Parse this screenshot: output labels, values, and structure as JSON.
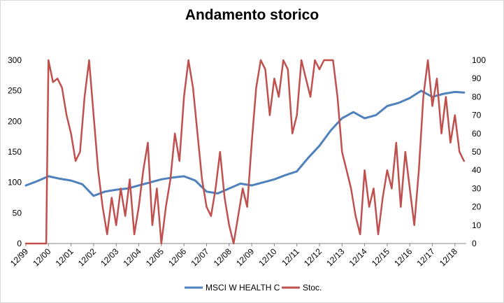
{
  "chart_data": {
    "type": "line",
    "title": "Andamento storico",
    "x_categories": [
      "12/99",
      "12/00",
      "12/01",
      "12/02",
      "12/03",
      "12/04",
      "12/05",
      "12/06",
      "12/07",
      "12/08",
      "12/09",
      "12/10",
      "12/11",
      "12/12",
      "12/13",
      "12/14",
      "12/15",
      "12/16",
      "12/17",
      "12/18"
    ],
    "y_left": {
      "ylim": [
        0,
        300
      ],
      "ticks": [
        0,
        50,
        100,
        150,
        200,
        250,
        300
      ]
    },
    "y_right": {
      "ylim": [
        0,
        100
      ],
      "ticks": [
        0,
        10,
        20,
        30,
        40,
        50,
        60,
        70,
        80,
        90,
        100
      ]
    },
    "grid": false,
    "legend_position": "bottom",
    "series": [
      {
        "name": "MSCI W HEALTH C",
        "axis": "left",
        "color": "#4f81bd",
        "x": [
          0,
          0.5,
          1,
          1.5,
          2,
          2.5,
          3,
          3.5,
          4,
          4.5,
          5,
          5.5,
          6,
          6.5,
          7,
          7.5,
          8,
          8.5,
          9,
          9.5,
          10,
          10.5,
          11,
          11.5,
          12,
          12.5,
          13,
          13.5,
          14,
          14.5,
          15,
          15.5,
          16,
          16.5,
          17,
          17.5,
          18,
          18.5,
          19,
          19.4
        ],
        "values": [
          95,
          102,
          110,
          106,
          103,
          97,
          78,
          85,
          88,
          90,
          95,
          100,
          105,
          108,
          110,
          103,
          85,
          82,
          90,
          98,
          95,
          100,
          105,
          112,
          118,
          140,
          160,
          185,
          205,
          215,
          205,
          210,
          225,
          230,
          238,
          250,
          240,
          245,
          248,
          247
        ]
      },
      {
        "name": "Stoc.",
        "axis": "right",
        "color": "#c0504d",
        "x": [
          0,
          0.5,
          0.9,
          1,
          1.2,
          1.4,
          1.6,
          1.8,
          2,
          2.2,
          2.4,
          2.6,
          2.8,
          3,
          3.2,
          3.4,
          3.6,
          3.8,
          4,
          4.2,
          4.4,
          4.6,
          4.8,
          5,
          5.2,
          5.4,
          5.6,
          5.8,
          6,
          6.2,
          6.4,
          6.6,
          6.8,
          7,
          7.2,
          7.4,
          7.6,
          7.8,
          8,
          8.2,
          8.4,
          8.6,
          8.8,
          9,
          9.2,
          9.4,
          9.6,
          9.8,
          10,
          10.2,
          10.4,
          10.6,
          10.8,
          11,
          11.2,
          11.4,
          11.6,
          11.8,
          12,
          12.2,
          12.4,
          12.6,
          12.8,
          13,
          13.2,
          13.4,
          13.6,
          13.8,
          14,
          14.2,
          14.4,
          14.6,
          14.8,
          15,
          15.2,
          15.4,
          15.6,
          15.8,
          16,
          16.2,
          16.4,
          16.6,
          16.8,
          17,
          17.2,
          17.4,
          17.6,
          17.8,
          18,
          18.2,
          18.4,
          18.6,
          18.8,
          19,
          19.2,
          19.4
        ],
        "values": [
          0,
          0,
          0,
          100,
          88,
          90,
          85,
          70,
          60,
          45,
          50,
          80,
          100,
          70,
          40,
          20,
          5,
          25,
          10,
          30,
          15,
          35,
          5,
          20,
          40,
          55,
          10,
          30,
          0,
          20,
          35,
          60,
          45,
          80,
          100,
          85,
          60,
          35,
          20,
          15,
          30,
          50,
          25,
          10,
          0,
          15,
          30,
          20,
          55,
          85,
          100,
          95,
          70,
          90,
          80,
          100,
          95,
          60,
          70,
          100,
          90,
          80,
          100,
          95,
          100,
          100,
          100,
          80,
          50,
          40,
          30,
          15,
          5,
          40,
          20,
          30,
          5,
          25,
          40,
          30,
          55,
          20,
          50,
          30,
          10,
          40,
          80,
          100,
          75,
          90,
          60,
          80,
          55,
          70,
          50,
          45
        ]
      }
    ]
  }
}
